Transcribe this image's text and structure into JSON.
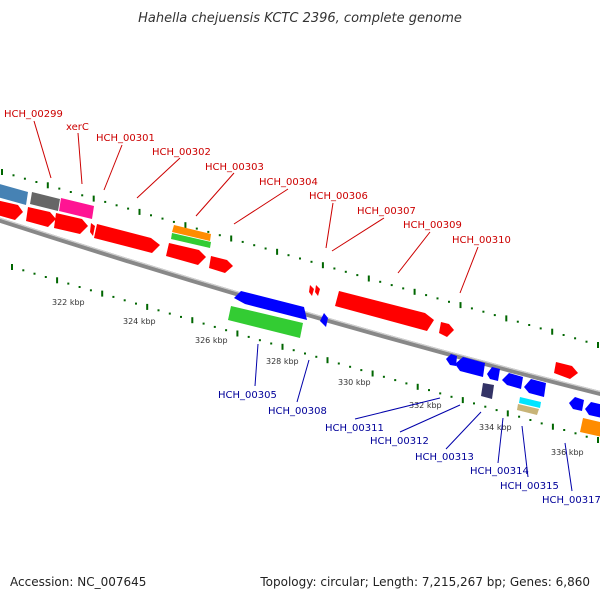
{
  "title": "Hahella chejuensis KCTC 2396, complete genome",
  "footer": {
    "accession": "Accession: NC_007645",
    "summary": "Topology: circular; Length: 7,215,267 bp; Genes: 6,860"
  },
  "ruler": [
    "322 kbp",
    "324 kbp",
    "326 kbp",
    "328 kbp",
    "330 kbp",
    "332 kbp",
    "334 kbp",
    "336 kbp"
  ],
  "forward_labels": [
    "HCH_00299",
    "xerC",
    "HCH_00301",
    "HCH_00302",
    "HCH_00303",
    "HCH_00304",
    "HCH_00306",
    "HCH_00307",
    "HCH_00309",
    "HCH_00310"
  ],
  "reverse_labels": [
    "HCH_00305",
    "HCH_00308",
    "HCH_00311",
    "HCH_00312",
    "HCH_00313",
    "HCH_00314",
    "HCH_00315",
    "HCH_00317"
  ],
  "colors": {
    "cds_forward": "#ff0000",
    "cds_reverse": "#0000ff",
    "backbone": "#808080",
    "tick": "#006600",
    "trna": "#ff8c00",
    "rrna_green": "#33cc33",
    "pink": "#ff1493",
    "steel": "#4682b4",
    "tan": "#c8b478",
    "cyan": "#00e5ff",
    "dark_slate": "#333366"
  }
}
